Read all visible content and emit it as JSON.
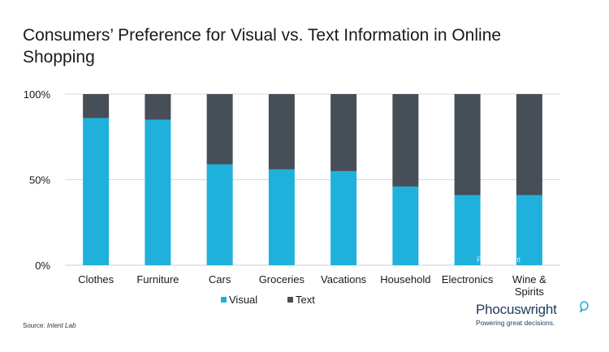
{
  "title": "Consumers’ Preference for Visual vs. Text Information in Online Shopping",
  "source": {
    "prefix": "Source:",
    "name": "Intent Lab"
  },
  "brand": {
    "name": "Phocuswright",
    "tagline": "Powering great decisions."
  },
  "watermark": "Phocuswright",
  "colors": {
    "visual": "#1fb1dc",
    "text": "#464e57",
    "grid": "#d9d9d9",
    "axis": "#cfcfcf"
  },
  "chart_data": {
    "type": "bar",
    "stacked": true,
    "categories": [
      "Clothes",
      "Furniture",
      "Cars",
      "Groceries",
      "Vacations",
      "Household",
      "Electronics",
      "Wine & Spirits"
    ],
    "series": [
      {
        "name": "Visual",
        "values": [
          86,
          85,
          59,
          56,
          55,
          46,
          41,
          41
        ]
      },
      {
        "name": "Text",
        "values": [
          14,
          15,
          41,
          44,
          45,
          54,
          59,
          59
        ]
      }
    ],
    "y_ticks": [
      "0%",
      "50%",
      "100%"
    ],
    "ylim": [
      0,
      100
    ],
    "grid": true,
    "legend": "bottom"
  }
}
